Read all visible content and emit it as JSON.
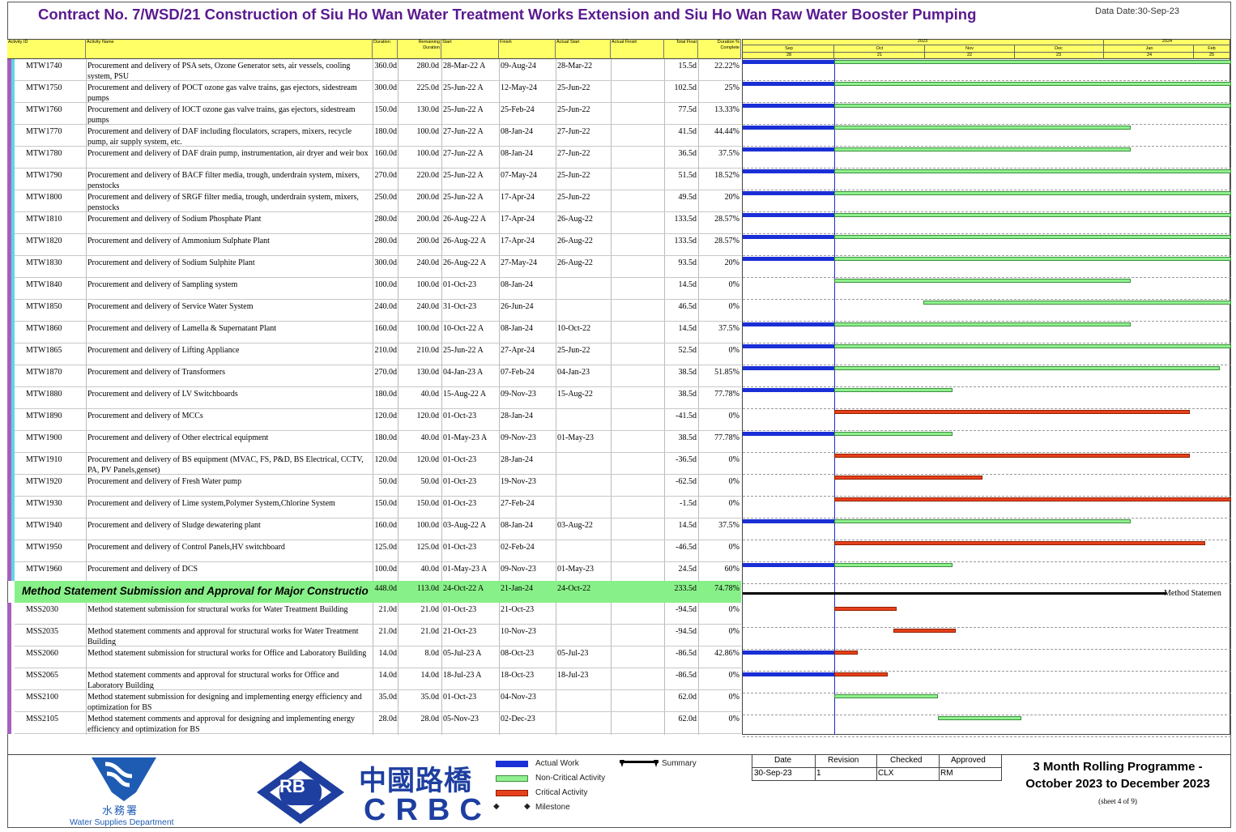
{
  "title": "Contract No. 7/WSD/21 Construction of Siu Ho Wan Water Treatment Works Extension and Siu Ho Wan Raw Water Booster Pumping",
  "data_date": "Data Date:30-Sep-23",
  "columns": {
    "activity_id": "Activity ID",
    "activity_name": "Activity Name",
    "duration": "Duration",
    "remaining_duration_1": "Remaining",
    "remaining_duration_2": "Duration",
    "start": "Start",
    "finish": "Finish",
    "actual_start": "Actual Start",
    "actual_finish": "Actual Finish",
    "total_float": "Total Float",
    "duration_pct_1": "Duration %",
    "duration_pct_2": "Complete"
  },
  "timescale": {
    "years": [
      "2023",
      "2024"
    ],
    "months": [
      "Sep",
      "Oct",
      "Nov",
      "Dec",
      "Jan",
      "Feb"
    ],
    "weeks": [
      "28",
      "21",
      "22",
      "23",
      "24",
      "25"
    ]
  },
  "rows": [
    {
      "id": "MTW1740",
      "name": "Procurement and delivery of PSA sets, Ozone Generator sets, air vessels, cooling system, PSU",
      "dur": "360.0d",
      "rem": "280.0d",
      "start": "28-Mar-22 A",
      "finish": "09-Aug-24",
      "astart": "28-Mar-22",
      "afinish": "",
      "float": "15.5d",
      "pct": "22.22%"
    },
    {
      "id": "MTW1750",
      "name": "Procurement and delivery of POCT ozone gas valve trains, gas ejectors, sidestream pumps",
      "dur": "300.0d",
      "rem": "225.0d",
      "start": "25-Jun-22 A",
      "finish": "12-May-24",
      "astart": "25-Jun-22",
      "afinish": "",
      "float": "102.5d",
      "pct": "25%"
    },
    {
      "id": "MTW1760",
      "name": "Procurement and delivery of IOCT ozone gas valve trains, gas ejectors, sidestream pumps",
      "dur": "150.0d",
      "rem": "130.0d",
      "start": "25-Jun-22 A",
      "finish": "25-Feb-24",
      "astart": "25-Jun-22",
      "afinish": "",
      "float": "77.5d",
      "pct": "13.33%"
    },
    {
      "id": "MTW1770",
      "name": "Procurement and delivery of DAF including floculators, scrapers, mixers, recycle pump, air supply system, etc.",
      "dur": "180.0d",
      "rem": "100.0d",
      "start": "27-Jun-22 A",
      "finish": "08-Jan-24",
      "astart": "27-Jun-22",
      "afinish": "",
      "float": "41.5d",
      "pct": "44.44%"
    },
    {
      "id": "MTW1780",
      "name": "Procurement and delivery of DAF drain pump, instrumentation, air dryer and weir box",
      "dur": "160.0d",
      "rem": "100.0d",
      "start": "27-Jun-22 A",
      "finish": "08-Jan-24",
      "astart": "27-Jun-22",
      "afinish": "",
      "float": "36.5d",
      "pct": "37.5%"
    },
    {
      "id": "MTW1790",
      "name": "Procurement and delivery of BACF filter media, trough, underdrain system, mixers, penstocks",
      "dur": "270.0d",
      "rem": "220.0d",
      "start": "25-Jun-22 A",
      "finish": "07-May-24",
      "astart": "25-Jun-22",
      "afinish": "",
      "float": "51.5d",
      "pct": "18.52%"
    },
    {
      "id": "MTW1800",
      "name": "Procurement and delivery of SRGF filter media, trough, underdrain system, mixers, penstocks",
      "dur": "250.0d",
      "rem": "200.0d",
      "start": "25-Jun-22 A",
      "finish": "17-Apr-24",
      "astart": "25-Jun-22",
      "afinish": "",
      "float": "49.5d",
      "pct": "20%"
    },
    {
      "id": "MTW1810",
      "name": "Procurement and delivery of Sodium Phosphate Plant",
      "dur": "280.0d",
      "rem": "200.0d",
      "start": "26-Aug-22 A",
      "finish": "17-Apr-24",
      "astart": "26-Aug-22",
      "afinish": "",
      "float": "133.5d",
      "pct": "28.57%"
    },
    {
      "id": "MTW1820",
      "name": "Procurement and delivery of Ammonium Sulphate Plant",
      "dur": "280.0d",
      "rem": "200.0d",
      "start": "26-Aug-22 A",
      "finish": "17-Apr-24",
      "astart": "26-Aug-22",
      "afinish": "",
      "float": "133.5d",
      "pct": "28.57%"
    },
    {
      "id": "MTW1830",
      "name": "Procurement and delivery of Sodium Sulphite Plant",
      "dur": "300.0d",
      "rem": "240.0d",
      "start": "26-Aug-22 A",
      "finish": "27-May-24",
      "astart": "26-Aug-22",
      "afinish": "",
      "float": "93.5d",
      "pct": "20%"
    },
    {
      "id": "MTW1840",
      "name": "Procurement and delivery of Sampling system",
      "dur": "100.0d",
      "rem": "100.0d",
      "start": "01-Oct-23",
      "finish": "08-Jan-24",
      "astart": "",
      "afinish": "",
      "float": "14.5d",
      "pct": "0%"
    },
    {
      "id": "MTW1850",
      "name": "Procurement and delivery of Service Water System",
      "dur": "240.0d",
      "rem": "240.0d",
      "start": "31-Oct-23",
      "finish": "26-Jun-24",
      "astart": "",
      "afinish": "",
      "float": "46.5d",
      "pct": "0%"
    },
    {
      "id": "MTW1860",
      "name": "Procurement and delivery of Lamella & Supernatant Plant",
      "dur": "160.0d",
      "rem": "100.0d",
      "start": "10-Oct-22 A",
      "finish": "08-Jan-24",
      "astart": "10-Oct-22",
      "afinish": "",
      "float": "14.5d",
      "pct": "37.5%"
    },
    {
      "id": "MTW1865",
      "name": "Procurement and delivery of Lifting Appliance",
      "dur": "210.0d",
      "rem": "210.0d",
      "start": "25-Jun-22 A",
      "finish": "27-Apr-24",
      "astart": "25-Jun-22",
      "afinish": "",
      "float": "52.5d",
      "pct": "0%"
    },
    {
      "id": "MTW1870",
      "name": "Procurement and delivery of Transformers",
      "dur": "270.0d",
      "rem": "130.0d",
      "start": "04-Jan-23 A",
      "finish": "07-Feb-24",
      "astart": "04-Jan-23",
      "afinish": "",
      "float": "38.5d",
      "pct": "51.85%"
    },
    {
      "id": "MTW1880",
      "name": "Procurement and delivery of LV Switchboards",
      "dur": "180.0d",
      "rem": "40.0d",
      "start": "15-Aug-22 A",
      "finish": "09-Nov-23",
      "astart": "15-Aug-22",
      "afinish": "",
      "float": "38.5d",
      "pct": "77.78%"
    },
    {
      "id": "MTW1890",
      "name": "Procurement and delivery of MCCs",
      "dur": "120.0d",
      "rem": "120.0d",
      "start": "01-Oct-23",
      "finish": "28-Jan-24",
      "astart": "",
      "afinish": "",
      "float": "-41.5d",
      "pct": "0%"
    },
    {
      "id": "MTW1900",
      "name": "Procurement and delivery of Other electrical equipment",
      "dur": "180.0d",
      "rem": "40.0d",
      "start": "01-May-23 A",
      "finish": "09-Nov-23",
      "astart": "01-May-23",
      "afinish": "",
      "float": "38.5d",
      "pct": "77.78%"
    },
    {
      "id": "MTW1910",
      "name": "Procurement and delivery of BS equipment (MVAC, FS, P&D, BS Electrical, CCTV, PA, PV Panels,genset)",
      "dur": "120.0d",
      "rem": "120.0d",
      "start": "01-Oct-23",
      "finish": "28-Jan-24",
      "astart": "",
      "afinish": "",
      "float": "-36.5d",
      "pct": "0%"
    },
    {
      "id": "MTW1920",
      "name": "Procurement and delivery of Fresh Water pump",
      "dur": "50.0d",
      "rem": "50.0d",
      "start": "01-Oct-23",
      "finish": "19-Nov-23",
      "astart": "",
      "afinish": "",
      "float": "-62.5d",
      "pct": "0%"
    },
    {
      "id": "MTW1930",
      "name": "Procurement and delivery of Lime system,Polymer System,Chlorine System",
      "dur": "150.0d",
      "rem": "150.0d",
      "start": "01-Oct-23",
      "finish": "27-Feb-24",
      "astart": "",
      "afinish": "",
      "float": "-1.5d",
      "pct": "0%"
    },
    {
      "id": "MTW1940",
      "name": "Procurement and delivery of Sludge dewatering plant",
      "dur": "160.0d",
      "rem": "100.0d",
      "start": "03-Aug-22 A",
      "finish": "08-Jan-24",
      "astart": "03-Aug-22",
      "afinish": "",
      "float": "14.5d",
      "pct": "37.5%"
    },
    {
      "id": "MTW1950",
      "name": "Procurement and delivery of Control Panels,HV switchboard",
      "dur": "125.0d",
      "rem": "125.0d",
      "start": "01-Oct-23",
      "finish": "02-Feb-24",
      "astart": "",
      "afinish": "",
      "float": "-46.5d",
      "pct": "0%"
    },
    {
      "id": "MTW1960",
      "name": "Procurement and delivery of DCS",
      "dur": "100.0d",
      "rem": "40.0d",
      "start": "01-May-23 A",
      "finish": "09-Nov-23",
      "astart": "01-May-23",
      "afinish": "",
      "float": "24.5d",
      "pct": "60%"
    }
  ],
  "wbs": {
    "name": "Method Statement Submission and Approval for Major Constructio",
    "dur": "448.0d",
    "rem": "113.0d",
    "start": "24-Oct-22 A",
    "finish": "21-Jan-24",
    "astart": "24-Oct-22",
    "float": "233.5d",
    "pct": "74.78%",
    "gantt_label": "Method Statemen"
  },
  "rows2": [
    {
      "id": "MSS2030",
      "name": "Method statement submission for structural works for Water Treatment Building",
      "dur": "21.0d",
      "rem": "21.0d",
      "start": "01-Oct-23",
      "finish": "21-Oct-23",
      "astart": "",
      "float": "-94.5d",
      "pct": "0%"
    },
    {
      "id": "MSS2035",
      "name": "Method statement comments and approval for structural works for Water Treatment Building",
      "dur": "21.0d",
      "rem": "21.0d",
      "start": "21-Oct-23",
      "finish": "10-Nov-23",
      "astart": "",
      "float": "-94.5d",
      "pct": "0%"
    },
    {
      "id": "MSS2060",
      "name": "Method statement submission for structural works for Office and Laboratory Building",
      "dur": "14.0d",
      "rem": "8.0d",
      "start": "05-Jul-23 A",
      "finish": "08-Oct-23",
      "astart": "05-Jul-23",
      "float": "-86.5d",
      "pct": "42.86%"
    },
    {
      "id": "MSS2065",
      "name": "Method statement comments and approval for structural works for Office and Laboratory Building",
      "dur": "14.0d",
      "rem": "14.0d",
      "start": "18-Jul-23 A",
      "finish": "18-Oct-23",
      "astart": "18-Jul-23",
      "float": "-86.5d",
      "pct": "0%"
    },
    {
      "id": "MSS2100",
      "name": "Method statement submission for designing and implementing energy efficiency and optimization for BS",
      "dur": "35.0d",
      "rem": "35.0d",
      "start": "01-Oct-23",
      "finish": "04-Nov-23",
      "astart": "",
      "float": "62.0d",
      "pct": "0%"
    },
    {
      "id": "MSS2105",
      "name": "Method statement comments and approval for designing and implementing energy efficiency and optimization for BS",
      "dur": "28.0d",
      "rem": "28.0d",
      "start": "05-Nov-23",
      "finish": "02-Dec-23",
      "astart": "",
      "float": "62.0d",
      "pct": "0%"
    }
  ],
  "footer": {
    "wsd_cn": "水務署",
    "wsd_en": "Water Supplies Department",
    "crbc_logo": "RB",
    "crbc_cn": "中國路橋",
    "crbc_en": "CRBC",
    "legend": {
      "actual": "Actual Work",
      "noncrit": "Non-Critical Activity",
      "crit": "Critical Activity",
      "milestone": "Milestone",
      "summary": "Summary"
    },
    "revision": {
      "h_date": "Date",
      "h_rev": "Revision",
      "h_checked": "Checked",
      "h_approved": "Approved",
      "date": "30-Sep-23",
      "rev": "1",
      "checked": "CLX",
      "approved": "RM"
    },
    "prog_title_1": "3 Month Rolling Programme -",
    "prog_title_2": "October 2023 to December 2023",
    "sheet": "(sheet 4 of 9)"
  },
  "colors": {
    "actual": "#1a2fd6",
    "noncrit": "#8ef08e",
    "crit": "#e8401c",
    "header": "#ffff66",
    "title": "#5a1a8f",
    "wbs": "#88f088"
  }
}
